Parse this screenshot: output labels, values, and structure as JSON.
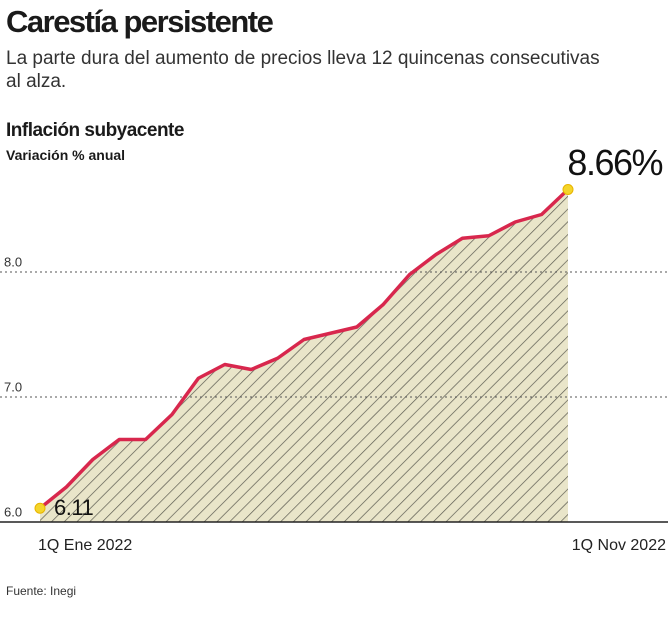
{
  "chart_data": {
    "type": "line",
    "title": "Carestía persistente",
    "subtitle": "La parte dura del aumento de precios lleva 12 quincenas consecutivas al alza.",
    "chart_title": "Inflación subyacente",
    "y_label": "Variación % anual",
    "source": "Fuente: Inegi",
    "categories": [
      "1Q Ene 2022",
      null,
      null,
      null,
      null,
      null,
      null,
      null,
      null,
      null,
      null,
      null,
      null,
      null,
      null,
      null,
      null,
      null,
      null,
      null,
      "1Q Nov 2022"
    ],
    "values": [
      6.11,
      6.28,
      6.5,
      6.66,
      6.66,
      6.86,
      7.15,
      7.26,
      7.22,
      7.31,
      7.46,
      7.51,
      7.56,
      7.74,
      7.98,
      8.14,
      8.27,
      8.29,
      8.4,
      8.46,
      8.66
    ],
    "value_labels": [
      "6.11",
      null,
      null,
      null,
      null,
      null,
      null,
      null,
      null,
      null,
      null,
      null,
      null,
      null,
      null,
      null,
      null,
      null,
      null,
      null,
      "8.66%"
    ],
    "color": "#d8274d",
    "area_color": "#e9e5c9",
    "ylim": [
      6.0,
      9.0
    ],
    "yticks": [
      {
        "value": 6.0,
        "label": "6.0"
      },
      {
        "value": 7.0,
        "label": "7.0"
      },
      {
        "value": 8.0,
        "label": "8.0"
      }
    ],
    "grid": true
  }
}
